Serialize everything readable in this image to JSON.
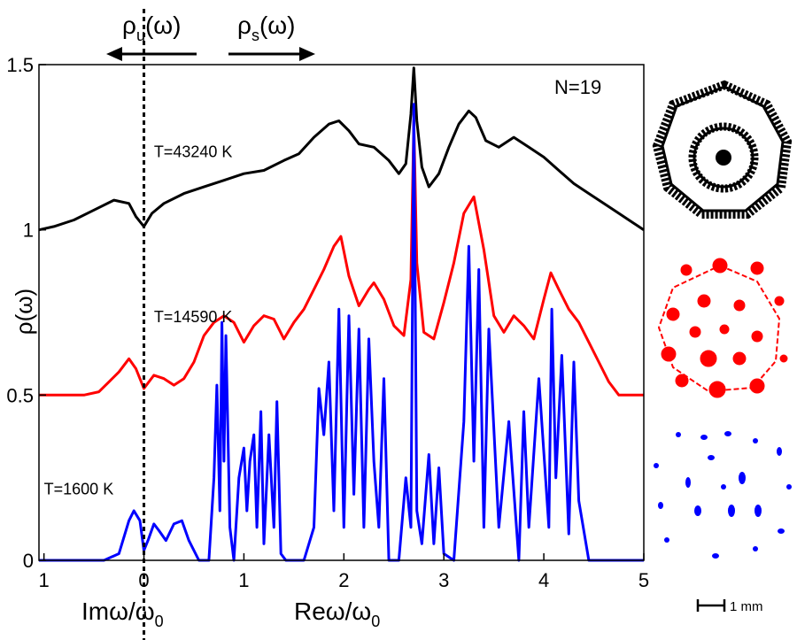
{
  "chart_data": {
    "type": "line",
    "ylabel": "ρ(ω)",
    "xlabel_left": "Imω/ω",
    "xlabel_left_sub": "0",
    "xlabel_right": "Reω/ω",
    "xlabel_right_sub": "0",
    "top_left_label": "ρ",
    "top_left_sub": "u",
    "top_left_tail": "(ω)",
    "top_right_label": "ρ",
    "top_right_sub": "s",
    "top_right_tail": "(ω)",
    "corner_label": "N=19",
    "scale_bar_label": "1 mm",
    "xlim": [
      -1.05,
      5
    ],
    "ylim": [
      0,
      1.5
    ],
    "x_ticks": [
      {
        "value": -1,
        "label": "1"
      },
      {
        "value": 0,
        "label": "0"
      },
      {
        "value": 1,
        "label": "1"
      },
      {
        "value": 2,
        "label": "2"
      },
      {
        "value": 3,
        "label": "3"
      },
      {
        "value": 4,
        "label": "4"
      },
      {
        "value": 5,
        "label": "5"
      }
    ],
    "y_ticks": [
      {
        "value": 0,
        "label": "0"
      },
      {
        "value": 0.5,
        "label": "0.5"
      },
      {
        "value": 1,
        "label": "1"
      },
      {
        "value": 1.5,
        "label": "1.5"
      }
    ],
    "series": [
      {
        "name": "T=43240 K",
        "color": "#000000",
        "label_at": [
          0.1,
          1.22
        ],
        "x": [
          -1.05,
          -0.9,
          -0.7,
          -0.5,
          -0.3,
          -0.15,
          -0.08,
          0,
          0.08,
          0.2,
          0.4,
          0.6,
          0.8,
          1.0,
          1.2,
          1.4,
          1.55,
          1.7,
          1.85,
          1.95,
          2.05,
          2.15,
          2.3,
          2.45,
          2.55,
          2.62,
          2.67,
          2.7,
          2.73,
          2.78,
          2.85,
          2.95,
          3.05,
          3.15,
          3.25,
          3.32,
          3.42,
          3.55,
          3.7,
          3.85,
          4.0,
          4.15,
          4.3,
          4.45,
          4.6,
          4.75,
          4.9,
          5.0
        ],
        "y": [
          1.0,
          1.01,
          1.03,
          1.06,
          1.09,
          1.08,
          1.04,
          1.01,
          1.05,
          1.08,
          1.11,
          1.13,
          1.15,
          1.17,
          1.18,
          1.21,
          1.23,
          1.28,
          1.32,
          1.33,
          1.3,
          1.26,
          1.25,
          1.21,
          1.17,
          1.2,
          1.35,
          1.49,
          1.33,
          1.19,
          1.13,
          1.17,
          1.25,
          1.32,
          1.36,
          1.34,
          1.27,
          1.25,
          1.28,
          1.25,
          1.22,
          1.18,
          1.14,
          1.11,
          1.08,
          1.05,
          1.02,
          1.0
        ]
      },
      {
        "name": "T=14590 K",
        "color": "#ff0000",
        "label_at": [
          0.1,
          0.72
        ],
        "x": [
          -1.05,
          -0.6,
          -0.45,
          -0.35,
          -0.25,
          -0.15,
          -0.08,
          0,
          0.1,
          0.2,
          0.3,
          0.4,
          0.5,
          0.6,
          0.7,
          0.8,
          0.9,
          1.0,
          1.1,
          1.2,
          1.3,
          1.4,
          1.5,
          1.6,
          1.7,
          1.8,
          1.9,
          1.97,
          2.05,
          2.15,
          2.25,
          2.3,
          2.4,
          2.5,
          2.6,
          2.67,
          2.7,
          2.73,
          2.8,
          2.9,
          3.0,
          3.1,
          3.2,
          3.3,
          3.4,
          3.5,
          3.6,
          3.7,
          3.8,
          3.9,
          4.0,
          4.07,
          4.15,
          4.25,
          4.35,
          4.45,
          4.55,
          4.65,
          4.75,
          5.0
        ],
        "y": [
          0.5,
          0.5,
          0.51,
          0.54,
          0.57,
          0.61,
          0.58,
          0.52,
          0.56,
          0.55,
          0.53,
          0.55,
          0.6,
          0.68,
          0.72,
          0.74,
          0.72,
          0.66,
          0.71,
          0.74,
          0.73,
          0.67,
          0.72,
          0.76,
          0.82,
          0.88,
          0.95,
          0.98,
          0.86,
          0.77,
          0.82,
          0.84,
          0.79,
          0.71,
          0.68,
          0.85,
          1.33,
          0.9,
          0.69,
          0.67,
          0.78,
          0.9,
          1.05,
          1.1,
          0.94,
          0.74,
          0.69,
          0.74,
          0.71,
          0.67,
          0.79,
          0.87,
          0.82,
          0.76,
          0.72,
          0.66,
          0.6,
          0.54,
          0.5,
          0.5
        ]
      },
      {
        "name": "T=1600 K",
        "color": "#0000ff",
        "label_at": [
          -1.0,
          0.2
        ],
        "x": [
          -1.05,
          -0.4,
          -0.25,
          -0.15,
          -0.1,
          -0.04,
          0,
          0.04,
          0.1,
          0.15,
          0.22,
          0.3,
          0.38,
          0.45,
          0.55,
          0.65,
          0.7,
          0.73,
          0.76,
          0.78,
          0.8,
          0.82,
          0.86,
          0.9,
          0.95,
          1.0,
          1.03,
          1.06,
          1.1,
          1.13,
          1.17,
          1.2,
          1.25,
          1.3,
          1.33,
          1.37,
          1.42,
          1.5,
          1.6,
          1.7,
          1.75,
          1.8,
          1.85,
          1.9,
          1.95,
          2.0,
          2.05,
          2.1,
          2.15,
          2.2,
          2.25,
          2.3,
          2.35,
          2.4,
          2.45,
          2.55,
          2.62,
          2.67,
          2.7,
          2.73,
          2.78,
          2.85,
          2.9,
          2.95,
          3.0,
          3.1,
          3.2,
          3.25,
          3.3,
          3.35,
          3.4,
          3.45,
          3.55,
          3.65,
          3.75,
          3.8,
          3.85,
          3.95,
          4.05,
          4.08,
          4.12,
          4.18,
          4.25,
          4.3,
          4.35,
          4.45,
          5.0
        ],
        "y": [
          0.0,
          0.0,
          0.02,
          0.12,
          0.15,
          0.12,
          0.03,
          0.06,
          0.11,
          0.09,
          0.06,
          0.11,
          0.12,
          0.06,
          0.0,
          0.0,
          0.25,
          0.53,
          0.15,
          0.72,
          0.3,
          0.68,
          0.1,
          0.0,
          0.25,
          0.34,
          0.15,
          0.3,
          0.38,
          0.1,
          0.45,
          0.05,
          0.38,
          0.1,
          0.48,
          0.02,
          0.0,
          0.0,
          0.0,
          0.1,
          0.52,
          0.38,
          0.6,
          0.15,
          0.76,
          0.1,
          0.74,
          0.2,
          0.7,
          0.1,
          0.67,
          0.3,
          0.1,
          0.55,
          0.0,
          0.0,
          0.25,
          0.1,
          1.38,
          0.15,
          0.05,
          0.32,
          0.05,
          0.28,
          0.02,
          0.0,
          0.42,
          0.95,
          0.3,
          0.88,
          0.1,
          0.7,
          0.1,
          0.42,
          0.0,
          0.45,
          0.1,
          0.55,
          0.1,
          0.76,
          0.25,
          0.62,
          0.08,
          0.6,
          0.18,
          0.0,
          0.0
        ]
      }
    ]
  }
}
